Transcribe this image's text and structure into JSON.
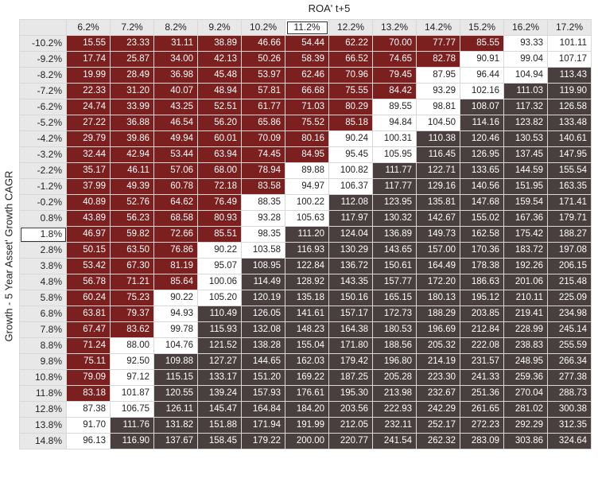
{
  "x_axis_title": "ROA' t+5",
  "y_axis_title": "Growth - 5 Year Asset' Growth CAGR",
  "colors": {
    "low": "#7b1f1f",
    "mid": "#ffffff",
    "high": "#4a3f3f",
    "header_bg": "#e8e8e8"
  },
  "chart_data": {
    "type": "heatmap",
    "xlabel": "ROA' t+5",
    "ylabel": "Growth - 5 Year Asset' Growth CAGR",
    "highlighted_x": "11.2%",
    "highlighted_y": "1.8%",
    "x_categories": [
      "6.2%",
      "7.2%",
      "8.2%",
      "9.2%",
      "10.2%",
      "11.2%",
      "12.2%",
      "13.2%",
      "14.2%",
      "15.2%",
      "16.2%",
      "17.2%"
    ],
    "y_categories": [
      "-10.2%",
      "-9.2%",
      "-8.2%",
      "-7.2%",
      "-6.2%",
      "-5.2%",
      "-4.2%",
      "-3.2%",
      "-2.2%",
      "-1.2%",
      "-0.2%",
      "0.8%",
      "1.8%",
      "2.8%",
      "3.8%",
      "4.8%",
      "5.8%",
      "6.8%",
      "7.8%",
      "8.8%",
      "9.8%",
      "10.8%",
      "11.8%",
      "12.8%",
      "13.8%",
      "14.8%"
    ],
    "values": [
      [
        "15.55",
        "23.33",
        "31.11",
        "38.89",
        "46.66",
        "54.44",
        "62.22",
        "70.00",
        "77.77",
        "85.55",
        "93.33",
        "101.11"
      ],
      [
        "17.74",
        "25.87",
        "34.00",
        "42.13",
        "50.26",
        "58.39",
        "66.52",
        "74.65",
        "82.78",
        "90.91",
        "99.04",
        "107.17"
      ],
      [
        "19.99",
        "28.49",
        "36.98",
        "45.48",
        "53.97",
        "62.46",
        "70.96",
        "79.45",
        "87.95",
        "96.44",
        "104.94",
        "113.43"
      ],
      [
        "22.33",
        "31.20",
        "40.07",
        "48.94",
        "57.81",
        "66.68",
        "75.55",
        "84.42",
        "93.29",
        "102.16",
        "111.03",
        "119.90"
      ],
      [
        "24.74",
        "33.99",
        "43.25",
        "52.51",
        "61.77",
        "71.03",
        "80.29",
        "89.55",
        "98.81",
        "108.07",
        "117.32",
        "126.58"
      ],
      [
        "27.22",
        "36.88",
        "46.54",
        "56.20",
        "65.86",
        "75.52",
        "85.18",
        "94.84",
        "104.50",
        "114.16",
        "123.82",
        "133.48"
      ],
      [
        "29.79",
        "39.86",
        "49.94",
        "60.01",
        "70.09",
        "80.16",
        "90.24",
        "100.31",
        "110.38",
        "120.46",
        "130.53",
        "140.61"
      ],
      [
        "32.44",
        "42.94",
        "53.44",
        "63.94",
        "74.45",
        "84.95",
        "95.45",
        "105.95",
        "116.45",
        "126.95",
        "137.45",
        "147.95"
      ],
      [
        "35.17",
        "46.11",
        "57.06",
        "68.00",
        "78.94",
        "89.88",
        "100.82",
        "111.77",
        "122.71",
        "133.65",
        "144.59",
        "155.54"
      ],
      [
        "37.99",
        "49.39",
        "60.78",
        "72.18",
        "83.58",
        "94.97",
        "106.37",
        "117.77",
        "129.16",
        "140.56",
        "151.95",
        "163.35"
      ],
      [
        "40.89",
        "52.76",
        "64.62",
        "76.49",
        "88.35",
        "100.22",
        "112.08",
        "123.95",
        "135.81",
        "147.68",
        "159.54",
        "171.41"
      ],
      [
        "43.89",
        "56.23",
        "68.58",
        "80.93",
        "93.28",
        "105.63",
        "117.97",
        "130.32",
        "142.67",
        "155.02",
        "167.36",
        "179.71"
      ],
      [
        "46.97",
        "59.82",
        "72.66",
        "85.51",
        "98.35",
        "111.20",
        "124.04",
        "136.89",
        "149.73",
        "162.58",
        "175.42",
        "188.27"
      ],
      [
        "50.15",
        "63.50",
        "76.86",
        "90.22",
        "103.58",
        "116.93",
        "130.29",
        "143.65",
        "157.00",
        "170.36",
        "183.72",
        "197.08"
      ],
      [
        "53.42",
        "67.30",
        "81.19",
        "95.07",
        "108.95",
        "122.84",
        "136.72",
        "150.61",
        "164.49",
        "178.38",
        "192.26",
        "206.15"
      ],
      [
        "56.78",
        "71.21",
        "85.64",
        "100.06",
        "114.49",
        "128.92",
        "143.35",
        "157.77",
        "172.20",
        "186.63",
        "201.06",
        "215.48"
      ],
      [
        "60.24",
        "75.23",
        "90.22",
        "105.20",
        "120.19",
        "135.18",
        "150.16",
        "165.15",
        "180.13",
        "195.12",
        "210.11",
        "225.09"
      ],
      [
        "63.81",
        "79.37",
        "94.93",
        "110.49",
        "126.05",
        "141.61",
        "157.17",
        "172.73",
        "188.29",
        "203.85",
        "219.41",
        "234.98"
      ],
      [
        "67.47",
        "83.62",
        "99.78",
        "115.93",
        "132.08",
        "148.23",
        "164.38",
        "180.53",
        "196.69",
        "212.84",
        "228.99",
        "245.14"
      ],
      [
        "71.24",
        "88.00",
        "104.76",
        "121.52",
        "138.28",
        "155.04",
        "171.80",
        "188.56",
        "205.32",
        "222.08",
        "238.83",
        "255.59"
      ],
      [
        "75.11",
        "92.50",
        "109.88",
        "127.27",
        "144.65",
        "162.03",
        "179.42",
        "196.80",
        "214.19",
        "231.57",
        "248.95",
        "266.34"
      ],
      [
        "79.09",
        "97.12",
        "115.15",
        "133.17",
        "151.20",
        "169.22",
        "187.25",
        "205.28",
        "223.30",
        "241.33",
        "259.36",
        "277.38"
      ],
      [
        "83.18",
        "101.87",
        "120.55",
        "139.24",
        "157.93",
        "176.61",
        "195.30",
        "213.98",
        "232.67",
        "251.36",
        "270.04",
        "288.73"
      ],
      [
        "87.38",
        "106.75",
        "126.11",
        "145.47",
        "164.84",
        "184.20",
        "203.56",
        "222.93",
        "242.29",
        "261.65",
        "281.02",
        "300.38"
      ],
      [
        "91.70",
        "111.76",
        "131.82",
        "151.88",
        "171.94",
        "191.99",
        "212.05",
        "232.11",
        "252.17",
        "272.23",
        "292.29",
        "312.35"
      ],
      [
        "96.13",
        "116.90",
        "137.67",
        "158.45",
        "179.22",
        "200.00",
        "220.77",
        "241.54",
        "262.32",
        "283.09",
        "303.86",
        "324.64"
      ]
    ]
  }
}
